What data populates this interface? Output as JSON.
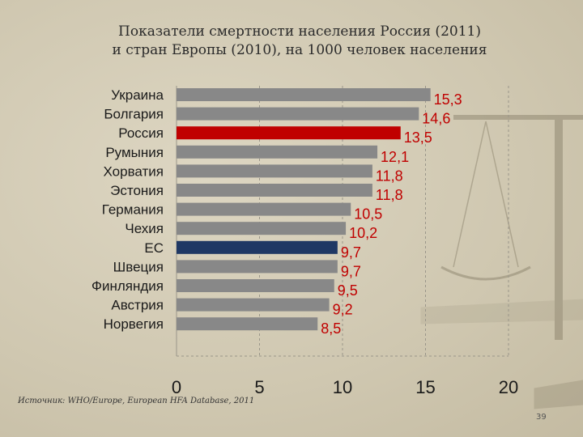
{
  "title": {
    "line1": "Показатели смертности населения Россия (2011)",
    "line2": "и стран Европы (2010),  на 1000 человек населения"
  },
  "source": "Источник: WHO/Europe, European HFA Database, 2011",
  "page_number": "39",
  "colors": {
    "bar_default": "#888888",
    "bar_russia": "#c00000",
    "bar_eu": "#1f3864",
    "value_label": "#c00000",
    "grid": "#9a968a"
  },
  "chart_data": {
    "type": "bar",
    "orientation": "horizontal",
    "title": "Показатели смертности населения Россия (2011) и стран Европы (2010),  на 1000 человек населения",
    "categories": [
      "Украина",
      "Болгария",
      "Россия",
      "Румыния",
      "Хорватия",
      "Эстония",
      "Германия",
      "Чехия",
      "ЕС",
      "Швеция",
      "Финляндия",
      "Австрия",
      "Норвегия"
    ],
    "values": [
      15.3,
      14.6,
      13.5,
      12.1,
      11.8,
      11.8,
      10.5,
      10.2,
      9.7,
      9.7,
      9.5,
      9.2,
      8.5
    ],
    "value_labels": [
      "15,3",
      "14,6",
      "13,5",
      "12,1",
      "11,8",
      "11,8",
      "10,5",
      "10,2",
      "9,7",
      "9,7",
      "9,5",
      "9,2",
      "8,5"
    ],
    "highlight": {
      "Россия": "#c00000",
      "ЕС": "#1f3864"
    },
    "xlim": [
      0,
      20
    ],
    "xticks": [
      "0",
      "5",
      "10",
      "15",
      "20"
    ],
    "xlabel": "",
    "ylabel": "",
    "grid": "vertical-dashed"
  }
}
